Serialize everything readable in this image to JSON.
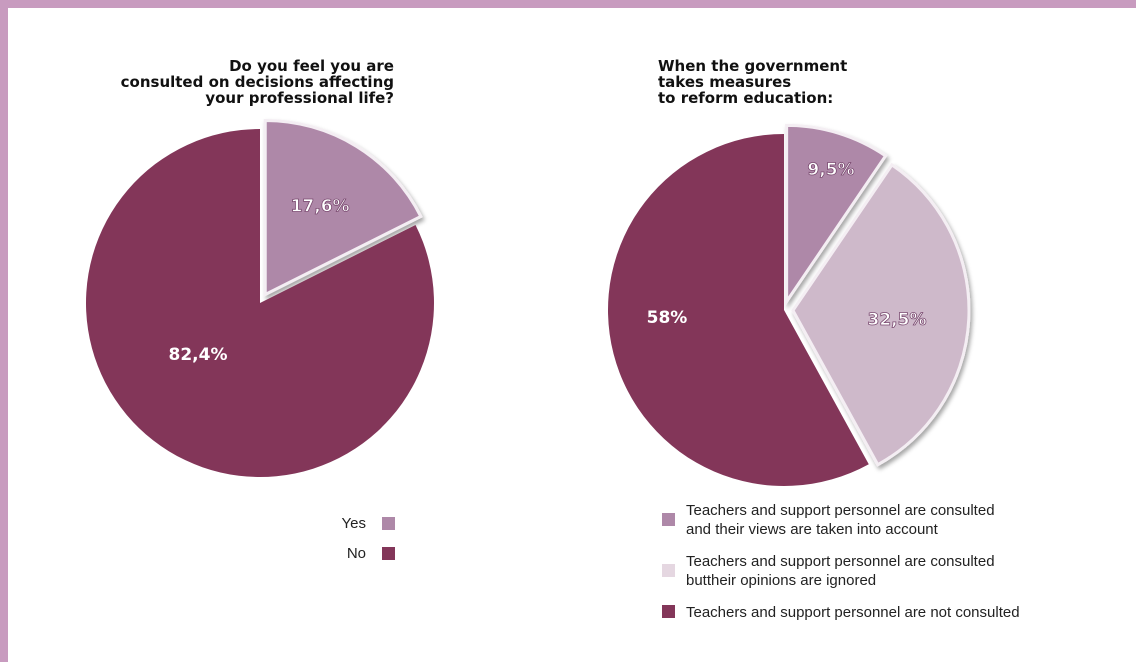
{
  "chart_data": [
    {
      "type": "pie",
      "title_lines": [
        "Do you feel you are",
        "consulted on decisions affecting",
        "your professional life?"
      ],
      "slices": [
        {
          "label": "Yes",
          "value": 17.6,
          "display": "17,6%",
          "color": "#ae88a8",
          "exploded": true
        },
        {
          "label": "No",
          "value": 82.4,
          "display": "82,4%",
          "color": "#833659",
          "exploded": false
        }
      ]
    },
    {
      "type": "pie",
      "title_lines": [
        "When the government",
        "takes measures",
        "to reform education:"
      ],
      "slices": [
        {
          "label_lines": [
            "Teachers and support personnel are consulted",
            "and their views are taken into account"
          ],
          "value": 9.5,
          "display": "9,5%",
          "color": "#ae88a8",
          "exploded": true
        },
        {
          "label_lines": [
            "Teachers and support personnel are consulted",
            "buttheir opinions are ignored"
          ],
          "value": 32.5,
          "display": "32,5%",
          "color": "#ceb9ca",
          "exploded": true
        },
        {
          "label_lines": [
            "Teachers and support personnel are not consulted"
          ],
          "value": 58,
          "display": "58%",
          "color": "#833659",
          "exploded": false
        }
      ]
    }
  ],
  "colors": {
    "frame": "#c89bbf",
    "legend_light": "#e5d7e1"
  }
}
